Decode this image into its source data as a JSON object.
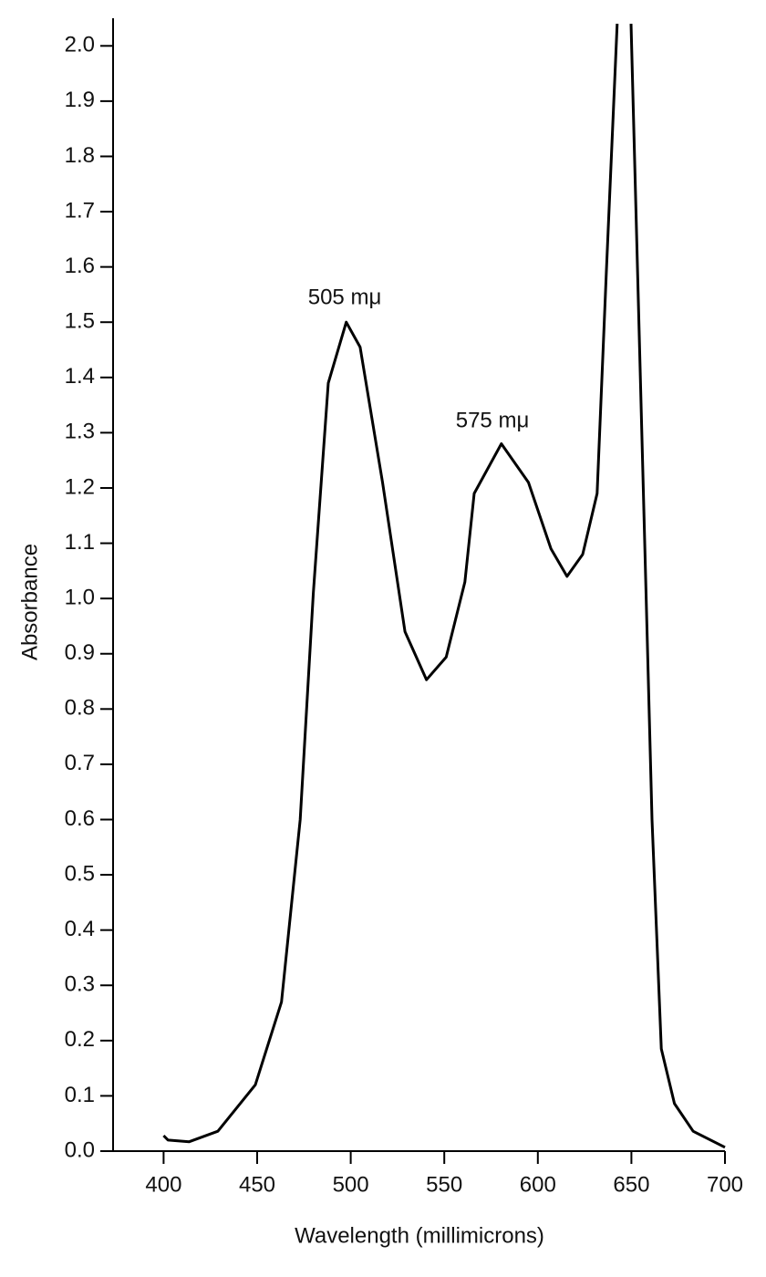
{
  "chart_data": {
    "type": "line",
    "xlabel": "Wavelength (millimicrons)",
    "ylabel": "Absorbance",
    "annotations": [
      "505 mμ",
      "575 mμ"
    ],
    "color": "#000000",
    "x": [
      400,
      402.4,
      413.7,
      429,
      449,
      463,
      473,
      480,
      488,
      497.6,
      505,
      517,
      529,
      540.5,
      551,
      561,
      566,
      580.5,
      595,
      607,
      615.6,
      624,
      631.7,
      636.6,
      642.4,
      646,
      649.8,
      661,
      666,
      673,
      683,
      700
    ],
    "values": [
      0.028,
      0.02,
      0.017,
      0.036,
      0.12,
      0.27,
      0.6,
      1.01,
      1.39,
      1.5,
      1.455,
      1.21,
      0.94,
      0.853,
      0.894,
      1.03,
      1.19,
      1.28,
      1.21,
      1.09,
      1.04,
      1.08,
      1.19,
      1.59,
      2.04,
      null,
      2.04,
      0.6,
      0.185,
      0.086,
      0.036,
      0.007
    ],
    "xlim": [
      373,
      700
    ],
    "ylim": [
      0,
      2.05
    ],
    "xticks": [
      400,
      450,
      500,
      550,
      600,
      650,
      700
    ],
    "yticks": [
      {
        "value": 0,
        "label": "0.0"
      },
      0.1,
      0.2,
      0.3,
      0.4,
      0.5,
      0.6,
      0.7,
      0.8,
      0.9,
      {
        "value": 1,
        "label": "1.0"
      },
      1.1,
      1.2,
      1.3,
      1.4,
      1.5,
      1.6,
      1.7,
      1.8,
      1.9,
      {
        "value": 2,
        "label": "2.0"
      }
    ],
    "grid": false
  }
}
